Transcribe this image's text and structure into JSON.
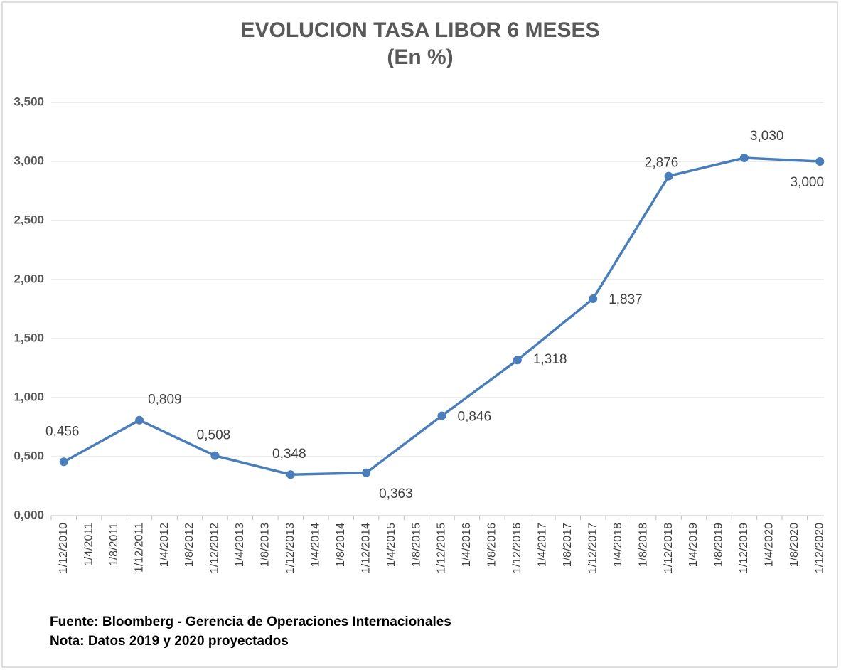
{
  "chart_data": {
    "type": "line",
    "title": "EVOLUCION TASA LIBOR 6 MESES",
    "subtitle": "(En %)",
    "notes": [
      "Fuente: Bloomberg - Gerencia de Operaciones Internacionales",
      "Nota: Datos 2019 y 2020 proyectados"
    ],
    "categories": [
      "1/12/2010",
      "1/4/2011",
      "1/8/2011",
      "1/12/2011",
      "1/4/2012",
      "1/8/2012",
      "1/12/2012",
      "1/4/2013",
      "1/8/2013",
      "1/12/2013",
      "1/4/2014",
      "1/8/2014",
      "1/12/2014",
      "1/4/2015",
      "1/8/2015",
      "1/12/2015",
      "1/4/2016",
      "1/8/2016",
      "1/12/2016",
      "1/4/2017",
      "1/8/2017",
      "1/12/2017",
      "1/4/2018",
      "1/8/2018",
      "1/12/2018",
      "1/4/2019",
      "1/8/2019",
      "1/12/2019",
      "1/4/2020",
      "1/8/2020",
      "1/12/2020"
    ],
    "x": [
      "1/12/2010",
      "1/12/2011",
      "1/12/2012",
      "1/12/2013",
      "1/12/2014",
      "1/12/2015",
      "1/12/2016",
      "1/12/2017",
      "1/12/2018",
      "1/12/2019",
      "1/12/2020"
    ],
    "series": [
      {
        "name": "LIBOR 6 meses",
        "color": "#4a7ebb",
        "values": [
          0.456,
          0.809,
          0.508,
          0.348,
          0.363,
          0.846,
          1.318,
          1.837,
          2.876,
          3.03,
          3.0
        ],
        "value_labels": [
          "0,456",
          "0,809",
          "0,508",
          "0,348",
          "0,363",
          "0,846",
          "1,318",
          "1,837",
          "2,876",
          "3,030",
          "3,000"
        ]
      }
    ],
    "ylim": [
      0,
      3.5
    ],
    "yticks": [
      {
        "value": 0,
        "label": "0,000"
      },
      {
        "value": 0.5,
        "label": "0,500"
      },
      {
        "value": 1,
        "label": "1,000"
      },
      {
        "value": 1.5,
        "label": "1,500"
      },
      {
        "value": 2,
        "label": "2,000"
      },
      {
        "value": 2.5,
        "label": "2,500"
      },
      {
        "value": 3,
        "label": "3,000"
      },
      {
        "value": 3.5,
        "label": "3,500"
      }
    ],
    "grid": true
  }
}
